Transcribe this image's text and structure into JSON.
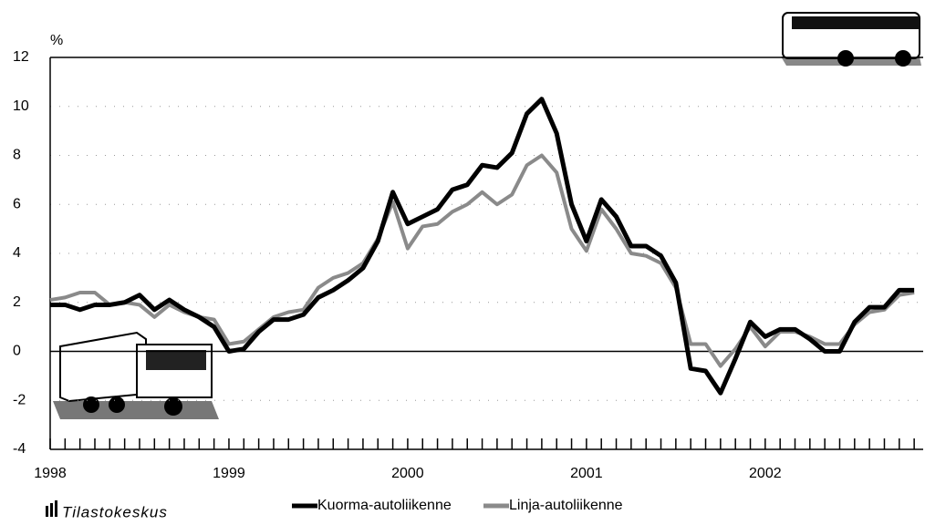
{
  "chart_data": {
    "type": "line",
    "y_label": "%",
    "categories": [
      "1998",
      null,
      null,
      null,
      null,
      null,
      null,
      null,
      null,
      null,
      null,
      null,
      "1999",
      null,
      null,
      null,
      null,
      null,
      null,
      null,
      null,
      null,
      null,
      null,
      "2000",
      null,
      null,
      null,
      null,
      null,
      null,
      null,
      null,
      null,
      null,
      null,
      "2001",
      null,
      null,
      null,
      null,
      null,
      null,
      null,
      null,
      null,
      null,
      null,
      "2002",
      null,
      null,
      null,
      null,
      null,
      null,
      null,
      null,
      null,
      null
    ],
    "series": [
      {
        "name": "Kuorma-autoliikenne",
        "color": "#000000",
        "values": [
          1.9,
          1.9,
          1.7,
          1.9,
          1.9,
          2.0,
          2.3,
          1.7,
          2.1,
          1.7,
          1.4,
          1.0,
          0.0,
          0.1,
          0.8,
          1.3,
          1.3,
          1.5,
          2.2,
          2.5,
          2.9,
          3.4,
          4.5,
          6.5,
          5.2,
          5.5,
          5.8,
          6.6,
          6.8,
          7.6,
          7.5,
          8.1,
          9.7,
          10.3,
          8.9,
          6.0,
          4.5,
          6.2,
          5.5,
          4.3,
          4.3,
          3.9,
          2.8,
          -0.7,
          -0.8,
          -1.7,
          -0.3,
          1.2,
          0.6,
          0.9,
          0.9,
          0.5,
          0.0,
          0.0,
          1.2,
          1.8,
          1.8,
          2.5,
          2.5
        ]
      },
      {
        "name": "Linja-autoliikenne",
        "color": "#8a8a8a",
        "values": [
          2.1,
          2.2,
          2.4,
          2.4,
          1.9,
          2.0,
          1.9,
          1.4,
          1.9,
          1.6,
          1.4,
          1.3,
          0.3,
          0.4,
          0.9,
          1.4,
          1.6,
          1.7,
          2.6,
          3.0,
          3.2,
          3.6,
          4.6,
          6.1,
          4.2,
          5.1,
          5.2,
          5.7,
          6.0,
          6.5,
          6.0,
          6.4,
          7.6,
          8.0,
          7.3,
          5.0,
          4.1,
          5.8,
          5.0,
          4.0,
          3.9,
          3.6,
          2.6,
          0.3,
          0.3,
          -0.6,
          0.1,
          1.0,
          0.2,
          0.8,
          0.8,
          0.6,
          0.3,
          0.3,
          1.1,
          1.6,
          1.7,
          2.3,
          2.4
        ]
      }
    ],
    "ylim": [
      -4,
      12
    ],
    "yticks": [
      -4,
      -2,
      0,
      2,
      4,
      6,
      8,
      10,
      12
    ],
    "grid": true,
    "source": "Tilastokeskus"
  }
}
